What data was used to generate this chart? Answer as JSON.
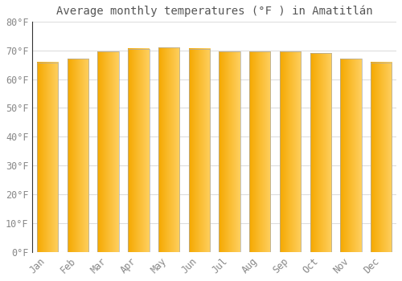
{
  "months": [
    "Jan",
    "Feb",
    "Mar",
    "Apr",
    "May",
    "Jun",
    "Jul",
    "Aug",
    "Sep",
    "Oct",
    "Nov",
    "Dec"
  ],
  "values": [
    65.8,
    67.0,
    69.5,
    70.5,
    71.0,
    70.5,
    69.5,
    69.5,
    69.5,
    69.0,
    67.0,
    65.8
  ],
  "bar_color_left": "#F5A800",
  "bar_color_right": "#FFD060",
  "bar_edge_color": "#AAAAAA",
  "background_color": "#ffffff",
  "plot_bg_color": "#ffffff",
  "grid_color": "#dddddd",
  "title": "Average monthly temperatures (°F ) in Amatitlán",
  "title_fontsize": 10,
  "tick_fontsize": 8.5,
  "tick_color": "#888888",
  "ylim": [
    0,
    80
  ],
  "yticks": [
    0,
    10,
    20,
    30,
    40,
    50,
    60,
    70,
    80
  ],
  "ytick_labels": [
    "0°F",
    "10°F",
    "20°F",
    "30°F",
    "40°F",
    "50°F",
    "60°F",
    "70°F",
    "80°F"
  ]
}
